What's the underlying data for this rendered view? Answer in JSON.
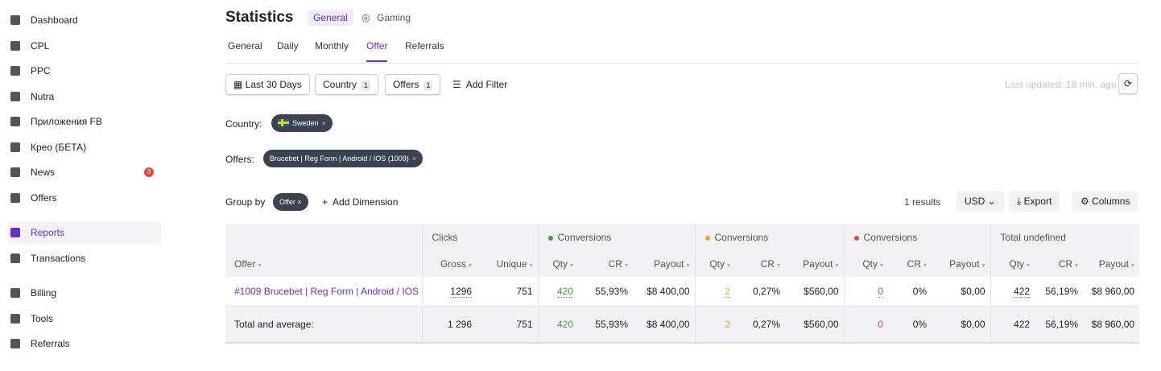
{
  "sidebar": {
    "items": [
      "Dashboard",
      "CPL",
      "PPC",
      "Nutra",
      "Приложения FB",
      "Креo (БЕТА)",
      "News",
      "Offers",
      "Reports",
      "Transactions",
      "Billing",
      "Tools",
      "Referrals"
    ],
    "news_badge": "3"
  },
  "header": {
    "title": "Statistics",
    "modes": [
      "General",
      "Gaming"
    ],
    "tabs": [
      "General",
      "Daily",
      "Monthly",
      "Offer",
      "Referrals"
    ]
  },
  "filters": {
    "period": "Last 30 Days",
    "buttons": [
      {
        "label": "Country",
        "count": "1"
      },
      {
        "label": "Offers",
        "count": "1"
      }
    ],
    "add_filter": "Add Filter",
    "last_updated": "Last updated: 18 min. ago"
  },
  "applied": [
    {
      "label": "Country:",
      "chip": "Sweden"
    },
    {
      "label": "Offers:",
      "chip": "Brucebet | Reg Form | Android / IOS (1009)"
    }
  ],
  "toolbar": {
    "group_by": "Group by",
    "group_chip": "Offer",
    "add_dimension": "Add Dimension",
    "results": "1 results",
    "currency": "USD",
    "export": "Export",
    "columns": "Columns"
  },
  "table": {
    "groups": [
      {
        "label": "Clicks",
        "span": 2
      },
      {
        "label": "Conversions",
        "span": 3,
        "color": "#3f9e4b"
      },
      {
        "label": "Conversions",
        "span": 3,
        "color": "#f0a43a"
      },
      {
        "label": "Conversions",
        "span": 3,
        "color": "#e2463c"
      },
      {
        "label": "Total undefined",
        "span": 3
      }
    ],
    "columns": [
      "Offer",
      "Gross",
      "Unique",
      "Qty",
      "CR",
      "Payout",
      "Qty",
      "CR",
      "Payout",
      "Qty",
      "CR",
      "Payout",
      "Qty",
      "CR",
      "Payout"
    ],
    "rows": [
      [
        "#1009 Brucebet | Reg Form | Android / IOS",
        "1296",
        "751",
        "420",
        "55,93%",
        "$8 400,00",
        "2",
        "0,27%",
        "$560,00",
        "0",
        "0%",
        "$0,00",
        "422",
        "56,19%",
        "$8 960,00"
      ],
      [
        "Total and average:",
        "1 296",
        "751",
        "420",
        "55,93%",
        "$8 400,00",
        "2",
        "0,27%",
        "$560,00",
        "0",
        "0%",
        "$0,00",
        "422",
        "56,19%",
        "$8 960,00"
      ]
    ]
  }
}
